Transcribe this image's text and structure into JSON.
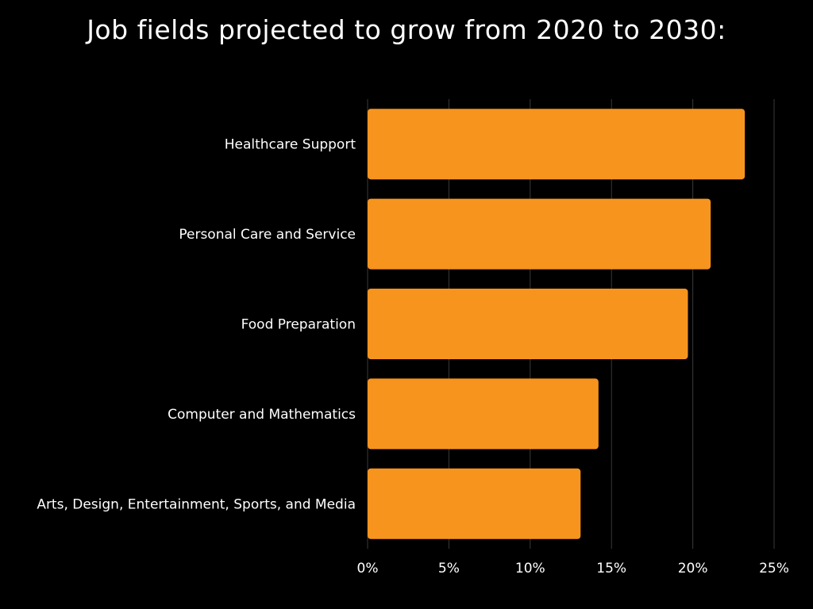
{
  "chart_data": {
    "type": "bar",
    "orientation": "horizontal",
    "title": "Job fields projected to grow from 2020 to 2030:",
    "categories": [
      "Healthcare Support",
      "Personal Care and Service",
      "Food Preparation",
      "Computer and Mathematics",
      "Arts, Design, Entertainment, Sports, and Media"
    ],
    "values": [
      23.2,
      21.1,
      19.7,
      14.2,
      13.1
    ],
    "unit": "%",
    "xlim": [
      0,
      25
    ],
    "xticks": [
      "0%",
      "5%",
      "10%",
      "15%",
      "20%",
      "25%"
    ],
    "xlabel": "",
    "ylabel": "",
    "grid": "vertical",
    "legend": "none"
  },
  "colors": {
    "background": "#000000",
    "bar": "#f7941e",
    "text": "#ffffff",
    "grid": "#3a3a3a"
  }
}
